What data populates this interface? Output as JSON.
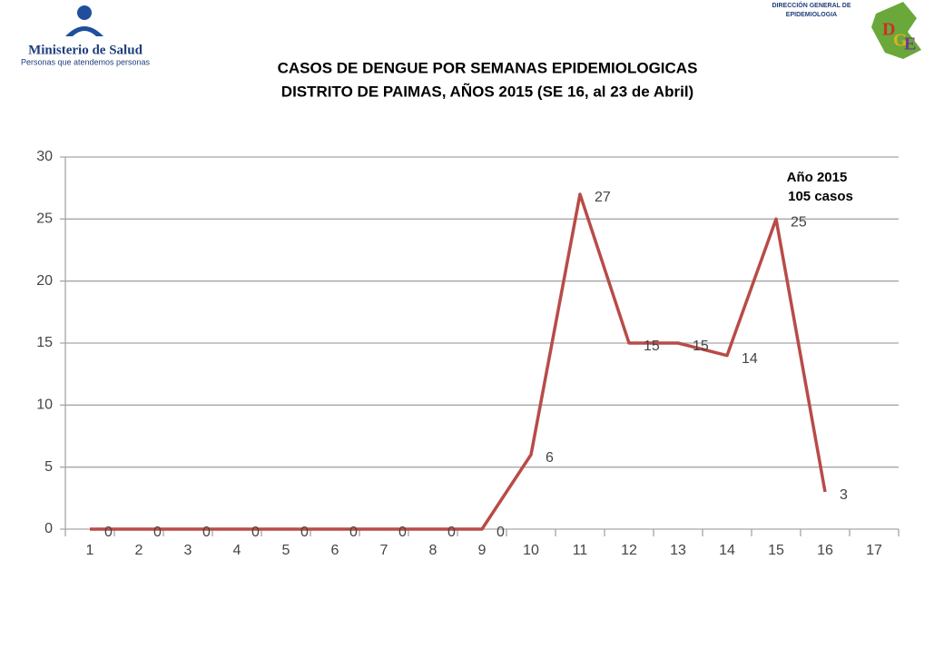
{
  "header": {
    "ministry": "Ministerio de Salud",
    "slogan": "Personas que atendemos personas",
    "office_line1": "DIRECCIÓN GENERAL DE",
    "office_line2": "EPIDEMIOLOGIA",
    "logo_letters": [
      "D",
      "G",
      "E"
    ]
  },
  "chart_data": {
    "type": "line",
    "title": "CASOS DE DENGUE POR SEMANAS EPIDEMIOLOGICAS",
    "subtitle": "DISTRITO DE PAIMAS, AÑOS 2015 (SE 16, al 23 de Abril)",
    "annotations": [
      "Año 2015",
      "105 casos"
    ],
    "categories": [
      "1",
      "2",
      "3",
      "4",
      "5",
      "6",
      "7",
      "8",
      "9",
      "10",
      "11",
      "12",
      "13",
      "14",
      "15",
      "16",
      "17"
    ],
    "series": [
      {
        "name": "2015",
        "color": "#b84b48",
        "values": [
          0,
          0,
          0,
          0,
          0,
          0,
          0,
          0,
          0,
          6,
          27,
          15,
          15,
          14,
          25,
          3,
          null
        ]
      }
    ],
    "ylim": [
      0,
      30
    ],
    "yticks": [
      0,
      5,
      10,
      15,
      20,
      25,
      30
    ],
    "grid": true
  }
}
